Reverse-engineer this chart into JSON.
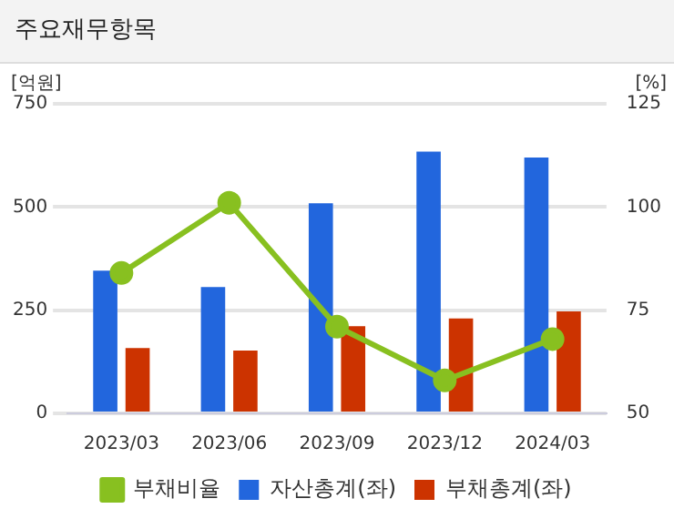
{
  "chart_data": {
    "type": "bar",
    "title": "주요재무항목",
    "ylabel": "[억원]",
    "y2label": "[%]",
    "categories": [
      "2023/03",
      "2023/06",
      "2023/09",
      "2023/12",
      "2024/03"
    ],
    "series": [
      {
        "name": "자산총계(좌)",
        "color": "#2266dd",
        "values": [
          346,
          306,
          509,
          634,
          620
        ]
      },
      {
        "name": "부채총계(좌)",
        "color": "#cc3300",
        "values": [
          158,
          152,
          211,
          230,
          247
        ]
      },
      {
        "name": "부채비율",
        "type": "line",
        "axis": "y2",
        "color": "#88c020",
        "values": [
          84,
          101,
          71,
          58,
          68
        ],
        "marker": "circle"
      }
    ],
    "ylim": [
      0,
      750
    ],
    "yticks": [
      0,
      250,
      500,
      750
    ],
    "y2lim": [
      50,
      125
    ],
    "y2ticks": [
      50,
      75,
      100,
      125
    ],
    "grid": "y",
    "legend": "bottom"
  }
}
